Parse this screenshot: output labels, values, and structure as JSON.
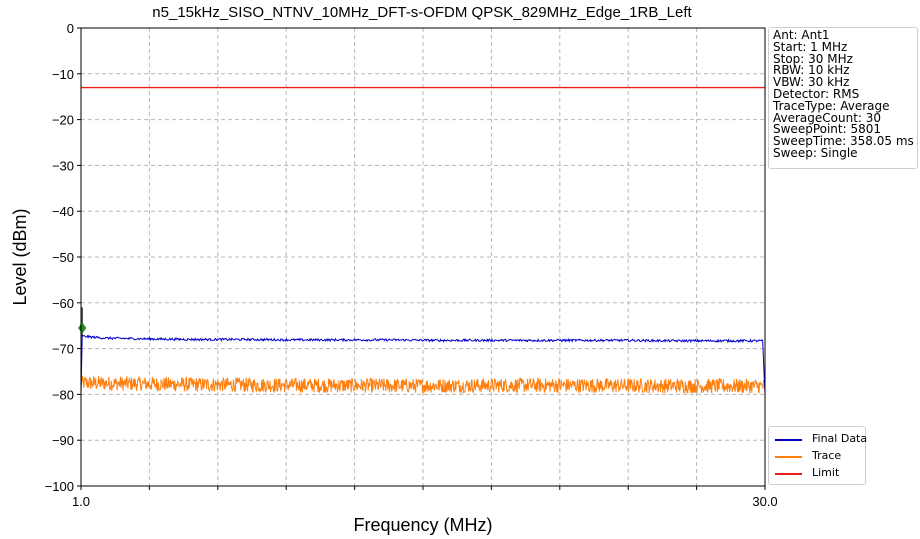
{
  "chart_data": {
    "type": "line",
    "title": "n5_15kHz_SISO_NTNV_10MHz_DFT-s-OFDM QPSK_829MHz_Edge_1RB_Left",
    "xlabel": "Frequency (MHz)",
    "ylabel": "Level (dBm)",
    "xlim": [
      1.0,
      30.0
    ],
    "ylim": [
      -100,
      0
    ],
    "x_ticks": [
      1.0,
      30.0
    ],
    "x_tick_labels": [
      "1.0",
      "30.0"
    ],
    "y_ticks": [
      0,
      -10,
      -20,
      -30,
      -40,
      -50,
      -60,
      -70,
      -80,
      -90,
      -100
    ],
    "grid": true,
    "legend_position": "bottom-right outside",
    "series": [
      {
        "name": "Final Data",
        "color": "#0000cc",
        "x": [
          1.0,
          1.05,
          2.0,
          4.0,
          6.0,
          8.0,
          10.0,
          12.0,
          14.0,
          16.0,
          18.0,
          20.0,
          22.0,
          24.0,
          26.0,
          28.0,
          29.9,
          30.0
        ],
        "y": [
          -80.0,
          -67.3,
          -67.7,
          -67.9,
          -68.0,
          -68.0,
          -68.1,
          -68.1,
          -68.1,
          -68.2,
          -68.2,
          -68.2,
          -68.2,
          -68.2,
          -68.3,
          -68.3,
          -68.3,
          -80.0
        ]
      },
      {
        "name": "Trace",
        "color": "#ff7f0e",
        "x": [
          1.0,
          5.0,
          10.0,
          15.0,
          20.0,
          25.0,
          30.0
        ],
        "y": [
          -77.5,
          -77.8,
          -78.0,
          -78.1,
          -78.0,
          -78.1,
          -78.2
        ]
      },
      {
        "name": "Limit",
        "color": "#ee1c1c",
        "x": [
          1.0,
          30.0
        ],
        "y": [
          -13.0,
          -13.0
        ]
      }
    ],
    "marker": {
      "x": 1.05,
      "y": -65.5,
      "color": "#1e8c1e"
    },
    "info_lines": [
      "Ant: Ant1",
      "Start: 1 MHz",
      "Stop: 30 MHz",
      "RBW: 10 kHz",
      "VBW: 30 kHz",
      "Detector: RMS",
      "TraceType: Average",
      "AverageCount: 30",
      "SweepPoint: 5801",
      "SweepTime: 358.05 ms",
      "Sweep: Single"
    ]
  }
}
